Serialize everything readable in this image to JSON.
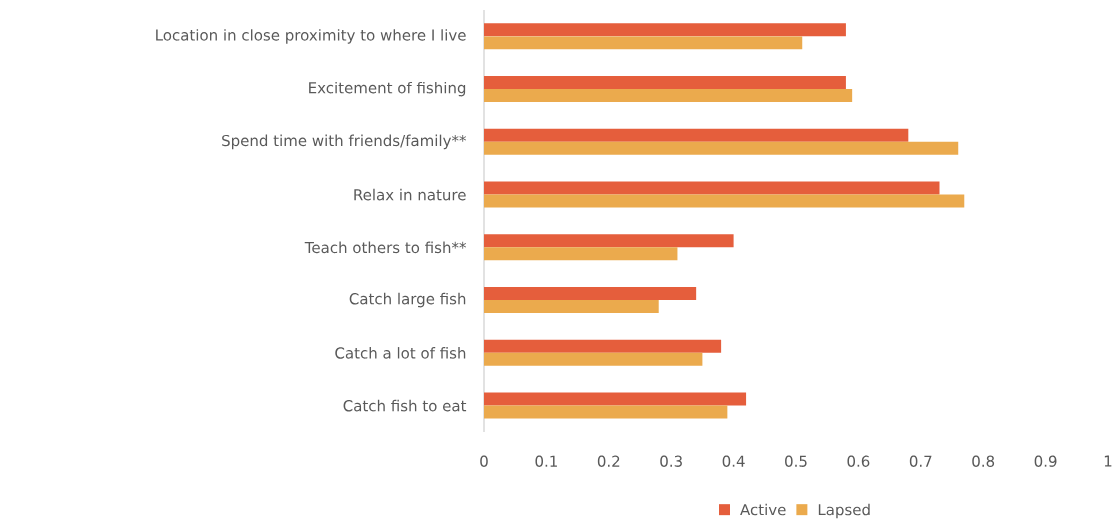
{
  "chart_data": {
    "type": "bar",
    "orientation": "horizontal",
    "categories": [
      "Location in close proximity to where I live",
      "Excitement of fishing",
      "Spend time with friends/family**",
      "Relax in nature",
      "Teach others to fish**",
      "Catch large fish",
      "Catch a lot of fish",
      "Catch fish to eat"
    ],
    "series": [
      {
        "name": "Active",
        "color": "#e55e3c",
        "values": [
          0.58,
          0.58,
          0.68,
          0.73,
          0.4,
          0.34,
          0.38,
          0.42
        ]
      },
      {
        "name": "Lapsed",
        "color": "#ebaa4d",
        "values": [
          0.51,
          0.59,
          0.76,
          0.77,
          0.31,
          0.28,
          0.35,
          0.39
        ]
      }
    ],
    "xlim": [
      0,
      1
    ],
    "xticks": [
      0,
      0.1,
      0.2,
      0.3,
      0.4,
      0.5,
      0.6,
      0.7,
      0.8,
      0.9,
      1
    ],
    "grid": false,
    "legend": "bottom"
  }
}
